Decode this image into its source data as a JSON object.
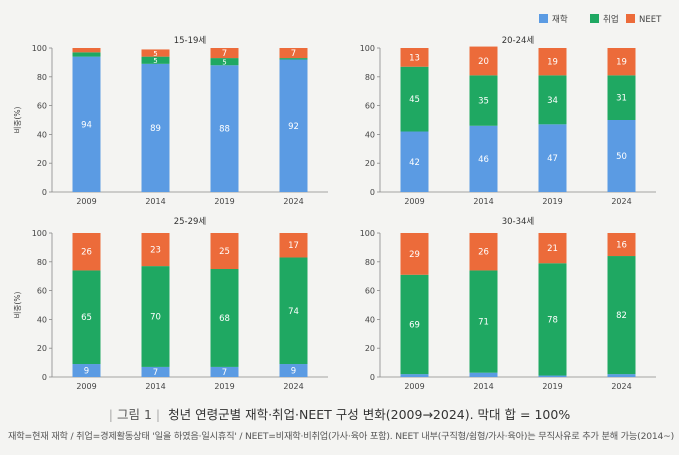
{
  "legend": [
    {
      "label": "재학",
      "color": "#5b9be3"
    },
    {
      "label": "취업",
      "color": "#1fa862"
    },
    {
      "label": "NEET",
      "color": "#ec6b3a"
    }
  ],
  "chart_data": [
    {
      "type": "bar",
      "stacked": true,
      "title": "15-19세",
      "categories": [
        "2009",
        "2014",
        "2019",
        "2024"
      ],
      "ylabel": "비중(%)",
      "ylim": [
        0,
        100
      ],
      "yticks": [
        0,
        20,
        40,
        60,
        80,
        100
      ],
      "series": [
        {
          "name": "재학",
          "values": [
            94,
            89,
            88,
            92
          ],
          "labels": [
            "94",
            "89",
            "88",
            "92"
          ]
        },
        {
          "name": "취업",
          "values": [
            3,
            5,
            5,
            1
          ],
          "labels": [
            "",
            "5",
            "5",
            ""
          ]
        },
        {
          "name": "NEET",
          "values": [
            3,
            5,
            7,
            7
          ],
          "labels": [
            "",
            "5",
            "7",
            "7"
          ]
        }
      ]
    },
    {
      "type": "bar",
      "stacked": true,
      "title": "20-24세",
      "categories": [
        "2009",
        "2014",
        "2019",
        "2024"
      ],
      "ylabel": "",
      "ylim": [
        0,
        100
      ],
      "yticks": [
        0,
        20,
        40,
        60,
        80,
        100
      ],
      "series": [
        {
          "name": "재학",
          "values": [
            42,
            46,
            47,
            50
          ],
          "labels": [
            "42",
            "46",
            "47",
            "50"
          ]
        },
        {
          "name": "취업",
          "values": [
            45,
            35,
            34,
            31
          ],
          "labels": [
            "45",
            "35",
            "34",
            "31"
          ]
        },
        {
          "name": "NEET",
          "values": [
            13,
            20,
            19,
            19
          ],
          "labels": [
            "13",
            "20",
            "19",
            "19"
          ]
        }
      ]
    },
    {
      "type": "bar",
      "stacked": true,
      "title": "25-29세",
      "categories": [
        "2009",
        "2014",
        "2019",
        "2024"
      ],
      "ylabel": "비중(%)",
      "ylim": [
        0,
        100
      ],
      "yticks": [
        0,
        20,
        40,
        60,
        80,
        100
      ],
      "series": [
        {
          "name": "재학",
          "values": [
            9,
            7,
            7,
            9
          ],
          "labels": [
            "9",
            "7",
            "7",
            "9"
          ]
        },
        {
          "name": "취업",
          "values": [
            65,
            70,
            68,
            74
          ],
          "labels": [
            "65",
            "70",
            "68",
            "74"
          ]
        },
        {
          "name": "NEET",
          "values": [
            26,
            23,
            25,
            17
          ],
          "labels": [
            "26",
            "23",
            "25",
            "17"
          ]
        }
      ]
    },
    {
      "type": "bar",
      "stacked": true,
      "title": "30-34세",
      "categories": [
        "2009",
        "2014",
        "2019",
        "2024"
      ],
      "ylabel": "",
      "ylim": [
        0,
        100
      ],
      "yticks": [
        0,
        20,
        40,
        60,
        80,
        100
      ],
      "series": [
        {
          "name": "재학",
          "values": [
            2,
            3,
            1,
            2
          ],
          "labels": [
            "",
            "",
            "",
            ""
          ]
        },
        {
          "name": "취업",
          "values": [
            69,
            71,
            78,
            82
          ],
          "labels": [
            "69",
            "71",
            "78",
            "82"
          ]
        },
        {
          "name": "NEET",
          "values": [
            29,
            26,
            21,
            16
          ],
          "labels": [
            "29",
            "26",
            "21",
            "16"
          ]
        }
      ]
    }
  ],
  "caption": {
    "figure_label": "그림 1",
    "text": "청년 연령군별 재학·취업·NEET 구성 변화(2009→2024). 막대 합 = 100%"
  },
  "note": "재학=현재 재학 / 취업=경제활동상태 '일을 하였음·일시휴직' / NEET=비재학·비취업(가사·육아 포함). NEET 내부(구직형/쉼형/가사·육아)는 무직사유로 추가 분해 가능(2014~)"
}
